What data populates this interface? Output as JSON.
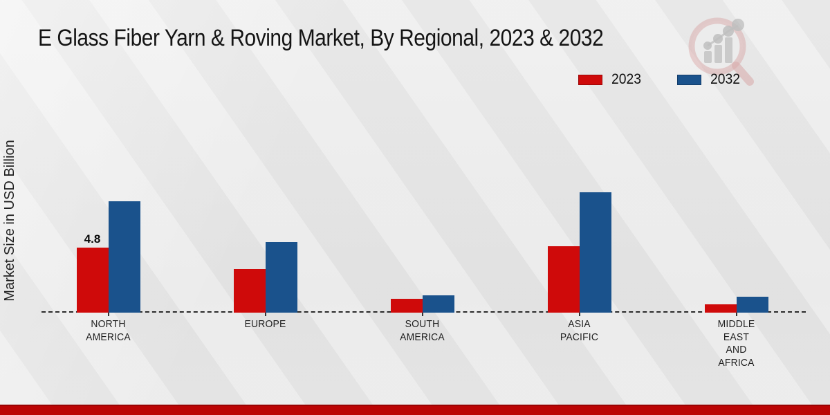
{
  "page": {
    "background": "#e9e9e9",
    "footer_color": "#bb0404"
  },
  "header": {
    "title": "E Glass Fiber Yarn & Roving Market, By Regional, 2023 & 2032"
  },
  "y_axis": {
    "label": "Market Size in USD Billion"
  },
  "legend": {
    "position": "top-right",
    "items": [
      {
        "label": "2023",
        "color": "#cf0a0a"
      },
      {
        "label": "2032",
        "color": "#1a528c"
      }
    ]
  },
  "watermark_icon": "magnifier-bar-chart-logo",
  "chart_data": {
    "type": "bar",
    "title": "E Glass Fiber Yarn & Roving Market, By Regional, 2023 & 2032",
    "xlabel": "",
    "ylabel": "Market Size in USD Billion",
    "categories": [
      [
        "NORTH",
        "AMERICA"
      ],
      [
        "EUROPE"
      ],
      [
        "SOUTH",
        "AMERICA"
      ],
      [
        "ASIA",
        "PACIFIC"
      ],
      [
        "MIDDLE",
        "EAST",
        "AND",
        "AFRICA"
      ]
    ],
    "series": [
      {
        "name": "2023",
        "color": "#cf0a0a",
        "values": [
          4.8,
          3.2,
          1.0,
          4.9,
          0.6
        ]
      },
      {
        "name": "2032",
        "color": "#1a528c",
        "values": [
          8.2,
          5.2,
          1.3,
          8.9,
          1.2
        ]
      }
    ],
    "annotations": [
      {
        "series": "2023",
        "category_index": 0,
        "text": "4.8"
      }
    ],
    "ylim": [
      0,
      9.5
    ],
    "grid": false,
    "baseline_style": "dashed",
    "legend_position": "top-right"
  }
}
